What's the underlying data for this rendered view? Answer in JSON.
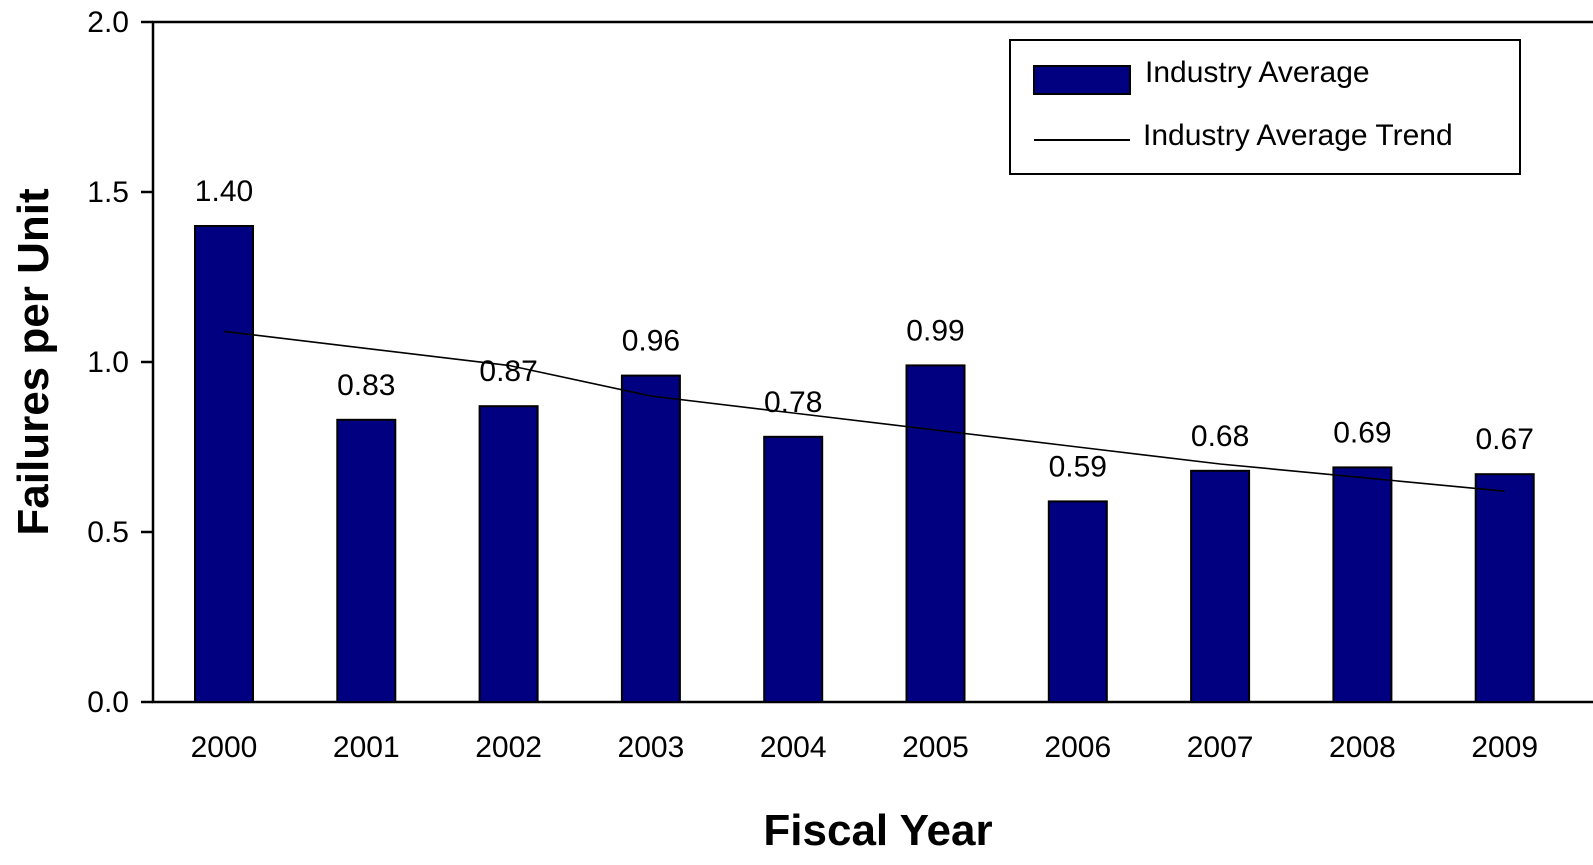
{
  "chart_data": {
    "type": "bar",
    "xlabel": "Fiscal Year",
    "ylabel": "Failures per Unit",
    "categories": [
      "2000",
      "2001",
      "2002",
      "2003",
      "2004",
      "2005",
      "2006",
      "2007",
      "2008",
      "2009"
    ],
    "series": [
      {
        "name": "Industry Average",
        "type": "bar",
        "values": [
          1.4,
          0.83,
          0.87,
          0.96,
          0.78,
          0.99,
          0.59,
          0.68,
          0.69,
          0.67
        ],
        "data_labels": [
          "1.40",
          "0.83",
          "0.87",
          "0.96",
          "0.78",
          "0.99",
          "0.59",
          "0.68",
          "0.69",
          "0.67"
        ]
      },
      {
        "name": "Industry Average Trend",
        "type": "line",
        "values": [
          1.09,
          1.04,
          0.99,
          0.9,
          0.85,
          0.8,
          0.75,
          0.7,
          0.66,
          0.62
        ]
      }
    ],
    "yticks": [
      "0.0",
      "0.5",
      "1.0",
      "1.5",
      "2.0"
    ],
    "ylim": [
      0,
      2.0
    ],
    "grid": false,
    "legend_position": "top-right",
    "colors": {
      "bar": "#000080",
      "line": "#000000"
    }
  }
}
